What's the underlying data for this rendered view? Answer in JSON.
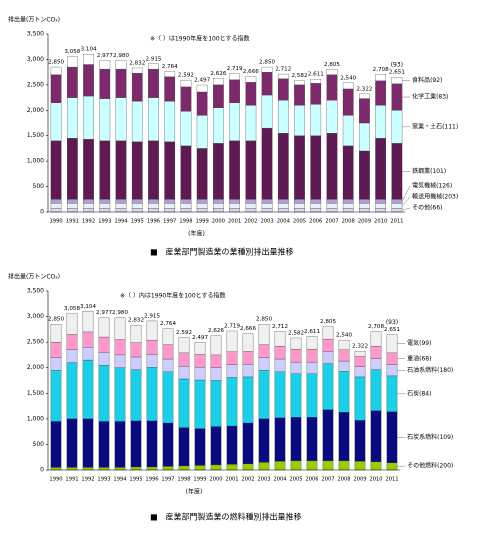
{
  "chart_data": [
    {
      "type": "bar",
      "stacked": true,
      "title": "■　産業部門製造業の業種別排出量推移",
      "y_label": "排出量(万トンCO₂)",
      "note": "※（ ）は1990年度を100とする指数",
      "x_label": "(年度)",
      "annotation": "(93)",
      "categories": [
        "1990",
        "1991",
        "1992",
        "1993",
        "1994",
        "1995",
        "1996",
        "1997",
        "1998",
        "1999",
        "2000",
        "2001",
        "2002",
        "2003",
        "2004",
        "2005",
        "2006",
        "2007",
        "2008",
        "2009",
        "2010",
        "2011"
      ],
      "ylim": [
        0,
        3500
      ],
      "yticks": [
        0,
        500,
        {
          "value": 1000,
          "label": "1,000"
        },
        {
          "value": 1500,
          "label": "1,500"
        },
        {
          "value": 2000,
          "label": "2,000"
        },
        {
          "value": 2500,
          "label": "2,500"
        },
        {
          "value": 3000,
          "label": "3,000"
        },
        {
          "value": 3500,
          "label": "3,500"
        }
      ],
      "grid": false,
      "series": [
        {
          "name": "その他(66)",
          "color": "#ddd6f2",
          "values": [
            70,
            70,
            70,
            70,
            70,
            70,
            70,
            70,
            70,
            70,
            70,
            70,
            70,
            70,
            70,
            70,
            70,
            70,
            70,
            70,
            70,
            70
          ]
        },
        {
          "name": "輸送用機械(203)",
          "color": "#eeeefa",
          "values": [
            100,
            100,
            100,
            100,
            100,
            100,
            100,
            100,
            100,
            100,
            100,
            100,
            100,
            100,
            100,
            100,
            100,
            100,
            100,
            100,
            100,
            100
          ]
        },
        {
          "name": "電気機械(126)",
          "color": "#a9a4d8",
          "values": [
            80,
            80,
            80,
            80,
            80,
            80,
            80,
            80,
            80,
            80,
            80,
            80,
            80,
            80,
            80,
            80,
            80,
            80,
            80,
            80,
            80,
            80
          ]
        },
        {
          "name": "鉄鋼業(101)",
          "color": "#5e1a52",
          "values": [
            1150,
            1200,
            1180,
            1150,
            1150,
            1130,
            1150,
            1130,
            1050,
            1000,
            1100,
            1150,
            1150,
            1400,
            1300,
            1250,
            1250,
            1300,
            1050,
            950,
            1200,
            1100
          ]
        },
        {
          "name": "窯業・土石(111)",
          "color": "#ccffff",
          "values": [
            750,
            800,
            850,
            830,
            850,
            800,
            850,
            800,
            680,
            650,
            700,
            750,
            700,
            650,
            650,
            600,
            620,
            650,
            600,
            550,
            650,
            650
          ]
        },
        {
          "name": "化学工業(83)",
          "color": "#7d2a6c",
          "values": [
            550,
            600,
            620,
            580,
            560,
            550,
            560,
            480,
            480,
            460,
            450,
            450,
            450,
            450,
            420,
            400,
            410,
            500,
            520,
            480,
            480,
            520
          ]
        },
        {
          "name": "食料品(92)",
          "color": "#ffffff",
          "values": [
            150,
            208,
            204,
            167,
            170,
            102,
            105,
            104,
            132,
            137,
            126,
            119,
            116,
            100,
            92,
            82,
            81,
            105,
            120,
            92,
            128,
            131
          ]
        }
      ],
      "totals": {
        "values": [
          2850,
          3058,
          3104,
          2977,
          2980,
          2832,
          2915,
          2764,
          2592,
          2497,
          2626,
          2719,
          2666,
          2850,
          2712,
          2582,
          2611,
          2805,
          2540,
          2322,
          2708,
          2651
        ],
        "value_labels": [
          "2,850",
          "3,058",
          "3,104",
          "2,977",
          "2,980",
          "2,832",
          "2,915",
          "2,764",
          "2,592",
          "2,497",
          "2,626",
          "2,719",
          "2,666",
          "2,850",
          "2,712",
          "2,582",
          "2,611",
          "2,805",
          "2,540",
          "2,322",
          "2,708",
          "2,651"
        ]
      }
    },
    {
      "type": "bar",
      "stacked": true,
      "title": "■　産業部門製造業の燃料種別排出量推移",
      "y_label": "排出量(万トンCO₂)",
      "note": "※（ ）内は1990年度を100とする指数",
      "x_label": "(年度)",
      "annotation": "(93)",
      "categories": [
        "1990",
        "1991",
        "1992",
        "1993",
        "1994",
        "1995",
        "1996",
        "1997",
        "1998",
        "1999",
        "2000",
        "2001",
        "2002",
        "2003",
        "2004",
        "2005",
        "2006",
        "2007",
        "2008",
        "2009",
        "2010",
        "2011"
      ],
      "ylim": [
        0,
        3500
      ],
      "yticks": [
        0,
        500,
        {
          "value": 1000,
          "label": "1,000"
        },
        {
          "value": 1500,
          "label": "1,500"
        },
        {
          "value": 2000,
          "label": "2,000"
        },
        {
          "value": 2500,
          "label": "2,500"
        },
        {
          "value": 3000,
          "label": "3,000"
        },
        {
          "value": 3500,
          "label": "3,500"
        }
      ],
      "grid": false,
      "series": [
        {
          "name": "その他燃料(200)",
          "color": "#99cc00",
          "values": [
            50,
            50,
            50,
            50,
            50,
            60,
            60,
            70,
            80,
            90,
            100,
            110,
            120,
            150,
            170,
            180,
            180,
            180,
            180,
            170,
            160,
            140
          ]
        },
        {
          "name": "石炭系燃料(109)",
          "color": "#0a0a80",
          "values": [
            900,
            950,
            950,
            900,
            900,
            900,
            900,
            850,
            750,
            720,
            750,
            750,
            800,
            850,
            850,
            850,
            850,
            1000,
            950,
            800,
            1000,
            1000
          ]
        },
        {
          "name": "石炭(84)",
          "color": "#19d0e6",
          "values": [
            1000,
            1100,
            1150,
            1100,
            1050,
            1000,
            1050,
            1000,
            950,
            950,
            900,
            950,
            900,
            950,
            900,
            850,
            850,
            900,
            800,
            850,
            800,
            700
          ]
        },
        {
          "name": "石油系燃料(180)",
          "color": "#ccccff",
          "values": [
            250,
            250,
            250,
            250,
            250,
            250,
            250,
            250,
            250,
            250,
            250,
            250,
            250,
            250,
            250,
            230,
            230,
            230,
            200,
            200,
            220,
            220
          ]
        },
        {
          "name": "重油(68)",
          "color": "#ff99cc",
          "values": [
            300,
            300,
            300,
            300,
            300,
            280,
            280,
            280,
            260,
            250,
            250,
            250,
            250,
            250,
            250,
            250,
            250,
            250,
            220,
            200,
            240,
            230
          ]
        },
        {
          "name": "電気(99)",
          "color": "#f0f0f0",
          "values": [
            350,
            408,
            404,
            377,
            430,
            342,
            375,
            314,
            302,
            237,
            376,
            409,
            346,
            400,
            292,
            222,
            251,
            245,
            190,
            102,
            288,
            361
          ]
        }
      ],
      "totals": {
        "values": [
          2850,
          3058,
          3104,
          2977,
          2980,
          2832,
          2915,
          2764,
          2592,
          2497,
          2626,
          2719,
          2666,
          2850,
          2712,
          2582,
          2611,
          2805,
          2540,
          2322,
          2708,
          2651
        ],
        "value_labels": [
          "2,850",
          "3,058",
          "3,104",
          "2,977",
          "2,980",
          "2,832",
          "2,915",
          "2,764",
          "2,592",
          "2,497",
          "2,626",
          "2,719",
          "2,666",
          "2,850",
          "2,712",
          "2,582",
          "2,611",
          "2,805",
          "2,540",
          "2,322",
          "2,708",
          "2,651"
        ]
      }
    }
  ]
}
